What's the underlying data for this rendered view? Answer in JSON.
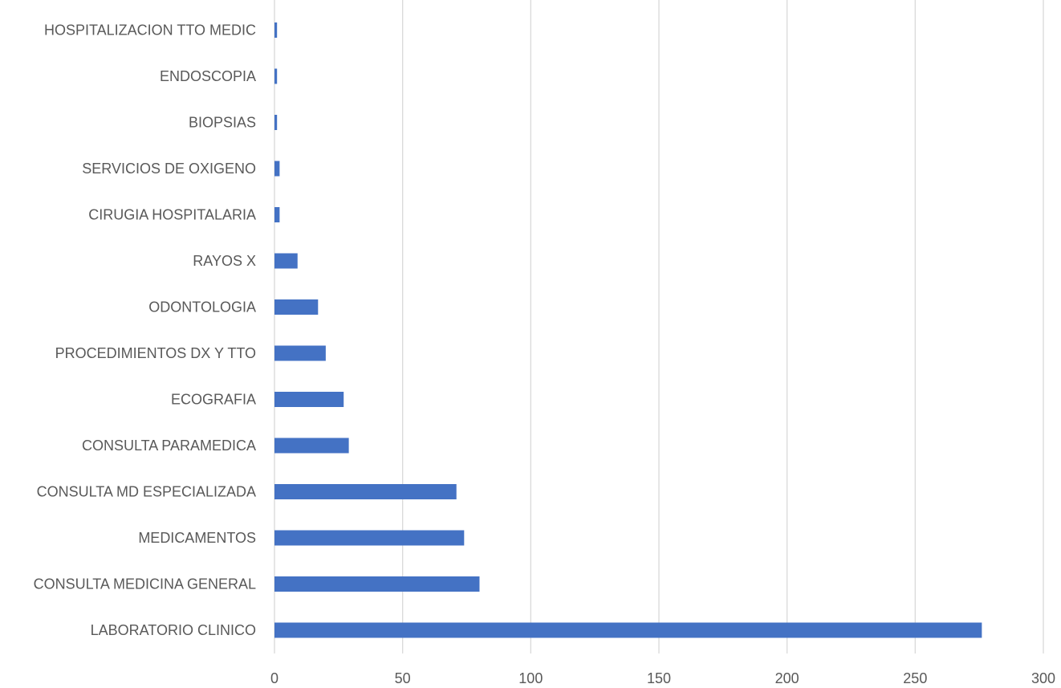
{
  "chart_data": {
    "type": "bar",
    "orientation": "horizontal",
    "title": "",
    "xlabel": "",
    "ylabel": "",
    "xlim": [
      0,
      300
    ],
    "ticks": [
      0,
      50,
      100,
      150,
      200,
      250,
      300
    ],
    "tick_labels": [
      "0",
      "50",
      "100",
      "150",
      "200",
      "250",
      "300"
    ],
    "grid": true,
    "legend": "none",
    "bar_color": "#4472c4",
    "categories": [
      "LABORATORIO CLINICO",
      "CONSULTA MEDICINA GENERAL",
      "MEDICAMENTOS",
      "CONSULTA MD ESPECIALIZADA",
      "CONSULTA PARAMEDICA",
      "ECOGRAFIA",
      "PROCEDIMIENTOS DX Y TTO",
      "ODONTOLOGIA",
      "RAYOS X",
      "CIRUGIA HOSPITALARIA",
      "SERVICIOS DE OXIGENO",
      "BIOPSIAS",
      "ENDOSCOPIA",
      "HOSPITALIZACION TTO MEDIC"
    ],
    "values": [
      276,
      80,
      74,
      71,
      29,
      27,
      20,
      17,
      9,
      2,
      2,
      1,
      1,
      1
    ]
  }
}
